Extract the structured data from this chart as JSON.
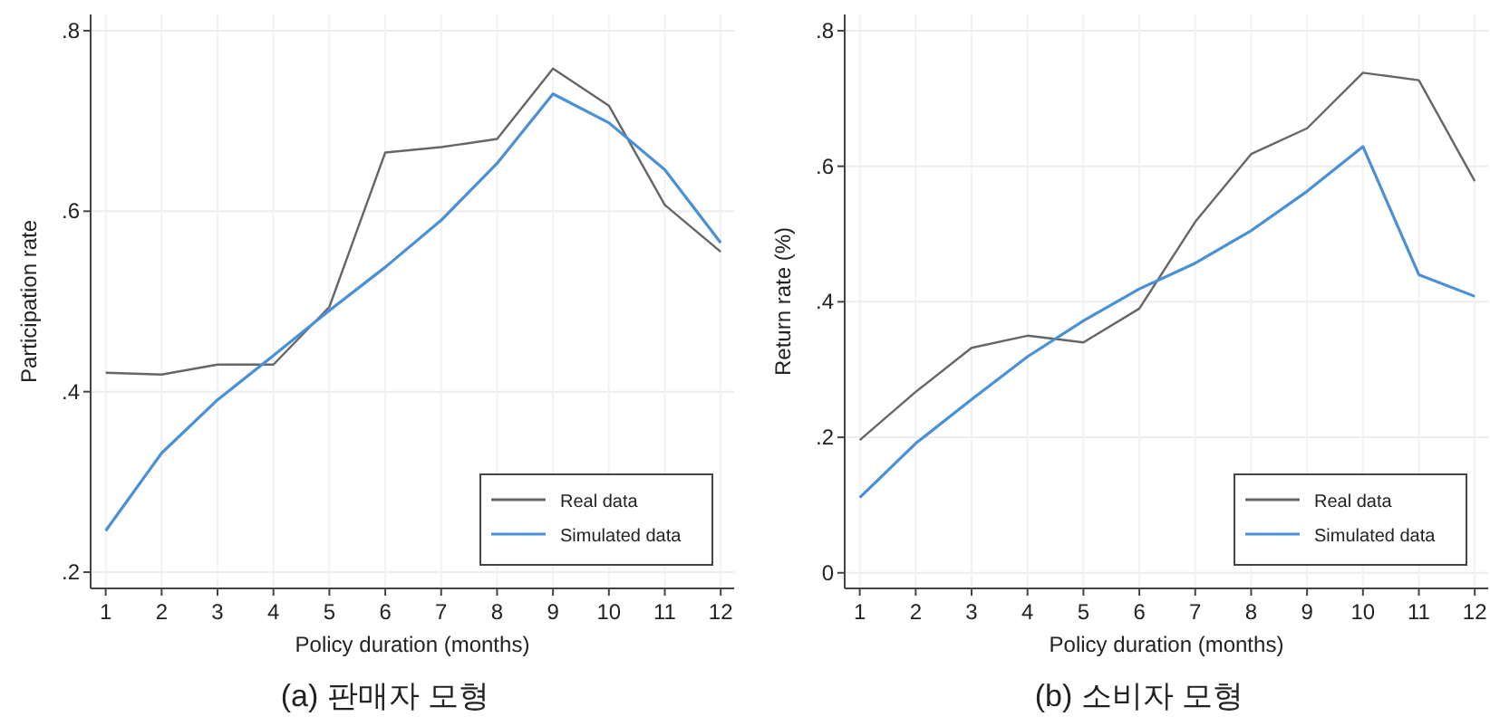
{
  "chart_data": [
    {
      "type": "line",
      "title": "(a) 판매자 모형",
      "xlabel": "Policy duration (months)",
      "ylabel": "Participation rate",
      "x": [
        1,
        2,
        3,
        4,
        5,
        6,
        7,
        8,
        9,
        10,
        11,
        12
      ],
      "series": [
        {
          "name": "Real data",
          "color": "#666666",
          "values": [
            0.421,
            0.419,
            0.43,
            0.43,
            0.494,
            0.665,
            0.671,
            0.68,
            0.758,
            0.717,
            0.607,
            0.555
          ]
        },
        {
          "name": "Simulated data",
          "color": "#4a90d9",
          "values": [
            0.246,
            0.332,
            0.391,
            0.44,
            0.49,
            0.538,
            0.59,
            0.653,
            0.73,
            0.698,
            0.646,
            0.565
          ]
        }
      ],
      "xlim": [
        0.73,
        12.24
      ],
      "ylim": [
        0.182,
        0.818
      ],
      "xticks": [
        1,
        2,
        3,
        4,
        5,
        6,
        7,
        8,
        9,
        10,
        11,
        12
      ],
      "yticks": [
        {
          "value": 0.2,
          "label": ".2"
        },
        {
          "value": 0.4,
          "label": ".4"
        },
        {
          "value": 0.6,
          "label": ".6"
        },
        {
          "value": 0.8,
          "label": ".8"
        }
      ],
      "grid": true,
      "legend": "bottom right"
    },
    {
      "type": "line",
      "title": "(b) 소비자 모형",
      "xlabel": "Policy duration (months)",
      "ylabel": "Return rate (%)",
      "x": [
        1,
        2,
        3,
        4,
        5,
        6,
        7,
        8,
        9,
        10,
        11,
        12
      ],
      "series": [
        {
          "name": "Real data",
          "color": "#666666",
          "values": [
            0.196,
            0.267,
            0.332,
            0.35,
            0.34,
            0.39,
            0.518,
            0.618,
            0.656,
            0.738,
            0.727,
            0.578
          ]
        },
        {
          "name": "Simulated data",
          "color": "#4a90d9",
          "values": [
            0.111,
            0.191,
            0.256,
            0.319,
            0.372,
            0.419,
            0.457,
            0.505,
            0.563,
            0.629,
            0.44,
            0.408
          ]
        }
      ],
      "xlim": [
        0.73,
        12.24
      ],
      "ylim": [
        -0.023,
        0.824
      ],
      "xticks": [
        1,
        2,
        3,
        4,
        5,
        6,
        7,
        8,
        9,
        10,
        11,
        12
      ],
      "yticks": [
        0,
        {
          "value": 0.2,
          "label": ".2"
        },
        {
          "value": 0.4,
          "label": ".4"
        },
        {
          "value": 0.6,
          "label": ".6"
        },
        {
          "value": 0.8,
          "label": ".8"
        }
      ],
      "grid": true,
      "legend": "bottom right"
    }
  ]
}
